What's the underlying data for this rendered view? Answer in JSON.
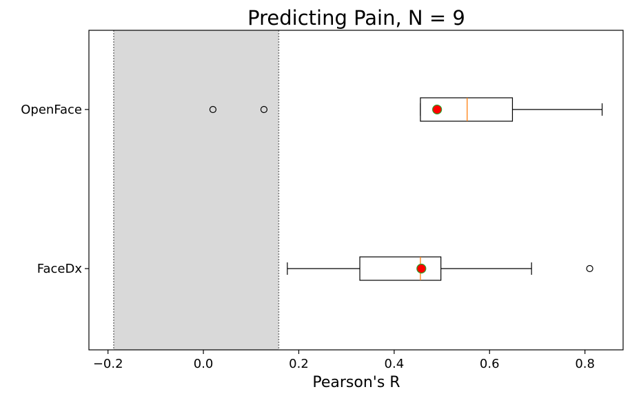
{
  "chart_data": {
    "type": "boxplot",
    "orientation": "horizontal",
    "title": "Predicting Pain, N = 9",
    "xlabel": "Pearson's R",
    "ylabel": "",
    "xlim": [
      -0.24,
      0.88
    ],
    "xticks": [
      -0.2,
      0.0,
      0.2,
      0.4,
      0.6,
      0.8
    ],
    "xtick_labels": [
      "−0.2",
      "0.0",
      "0.2",
      "0.4",
      "0.6",
      "0.8"
    ],
    "grid": false,
    "legend": null,
    "shaded_region": {
      "x_from": -0.188,
      "x_to": 0.158,
      "color": "#d9d9d9",
      "edge_style": "dotted",
      "edge_color": "#777777"
    },
    "series": [
      {
        "name": "OpenFace",
        "whisker_low": 0.455,
        "q1": 0.455,
        "median": 0.553,
        "q3": 0.648,
        "whisker_high": 0.836,
        "mean": 0.49,
        "outliers": [
          0.02,
          0.127
        ]
      },
      {
        "name": "FaceDx",
        "whisker_low": 0.176,
        "q1": 0.328,
        "median": 0.455,
        "q3": 0.498,
        "whisker_high": 0.688,
        "mean": 0.457,
        "outliers": [
          0.81
        ]
      }
    ],
    "colors": {
      "box": "#000000",
      "median": "#ff7f0e",
      "mean_fill": "#ff0000",
      "mean_edge": "#2ca02c",
      "outlier_edge": "#000000"
    }
  }
}
